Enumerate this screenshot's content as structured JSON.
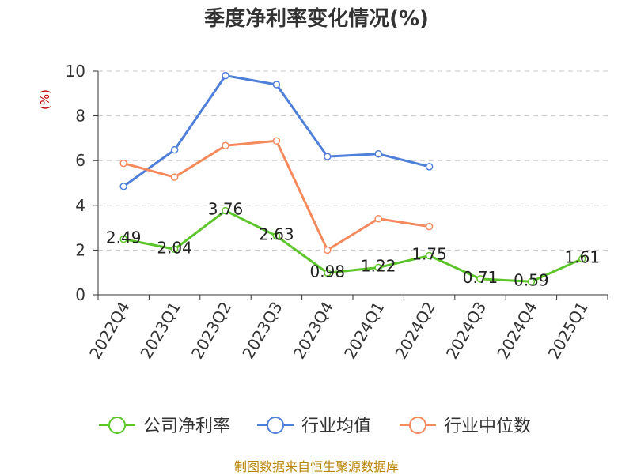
{
  "chart_data": {
    "type": "line",
    "title": "季度净利率变化情况(%)",
    "ylabel": "(%)",
    "ylim": [
      0,
      10
    ],
    "yticks": [
      0,
      2,
      4,
      6,
      8,
      10
    ],
    "grid": true,
    "legend_position": "bottom",
    "categories": [
      "2022Q4",
      "2023Q1",
      "2023Q2",
      "2023Q3",
      "2023Q4",
      "2024Q1",
      "2024Q2",
      "2024Q3",
      "2024Q4",
      "2025Q1"
    ],
    "series": [
      {
        "name": "公司净利率",
        "color": "#5cc529",
        "values": [
          2.49,
          2.04,
          3.76,
          2.63,
          0.98,
          1.22,
          1.75,
          0.71,
          0.59,
          1.61
        ],
        "labels": [
          "2.49",
          "2.04",
          "3.76",
          "2.63",
          "0.98",
          "1.22",
          "1.75",
          "0.71",
          "0.59",
          "1.61"
        ]
      },
      {
        "name": "行业均值",
        "color": "#4e7fd9",
        "values": [
          4.85,
          6.48,
          9.8,
          9.4,
          6.18,
          6.3,
          5.73,
          null,
          null,
          null
        ]
      },
      {
        "name": "行业中位数",
        "color": "#f6895b",
        "values": [
          5.88,
          5.26,
          6.67,
          6.88,
          2.0,
          3.4,
          3.05,
          null,
          null,
          null
        ]
      }
    ]
  },
  "source": "制图数据来自恒生聚源数据库"
}
